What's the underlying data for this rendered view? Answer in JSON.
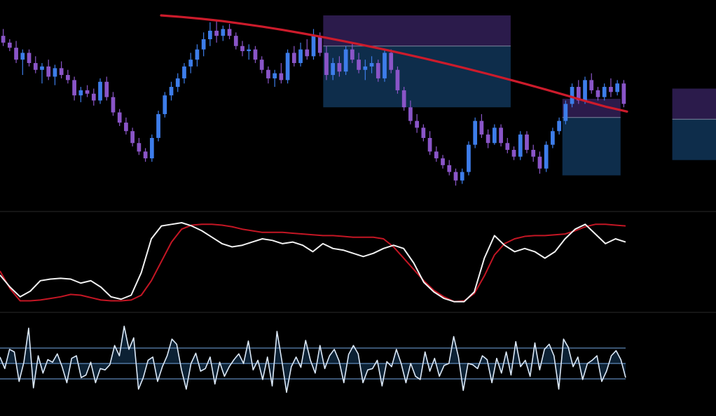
{
  "chart_data": {
    "type": "candlestick",
    "colors": {
      "background": "#000000",
      "up": "#3d7dea",
      "down": "#8a55c8",
      "moving_average": "#cc1b2b",
      "oscillator_fast": "#f2f2f2",
      "oscillator_slow": "#c41624",
      "histogram_line": "#dce9f8",
      "band": "#6f9fd6",
      "zone_top": "#3a2464",
      "zone_bottom": "#12385e",
      "pane_divider": "#2a2a2a"
    },
    "price_pane": {
      "ylim": [
        0,
        100
      ],
      "candles": [
        [
          88,
          92,
          82,
          84
        ],
        [
          84,
          86,
          79,
          81
        ],
        [
          81,
          85,
          72,
          74
        ],
        [
          74,
          80,
          65,
          78
        ],
        [
          78,
          80,
          70,
          72
        ],
        [
          72,
          76,
          66,
          68
        ],
        [
          68,
          72,
          60,
          70
        ],
        [
          70,
          74,
          62,
          64
        ],
        [
          64,
          71,
          59,
          69
        ],
        [
          69,
          73,
          63,
          65
        ],
        [
          65,
          68,
          60,
          62
        ],
        [
          62,
          64,
          50,
          53
        ],
        [
          53,
          58,
          49,
          56
        ],
        [
          56,
          59,
          52,
          54
        ],
        [
          54,
          57,
          47,
          50
        ],
        [
          50,
          63,
          48,
          61
        ],
        [
          61,
          64,
          50,
          52
        ],
        [
          52,
          55,
          41,
          43
        ],
        [
          43,
          45,
          35,
          37
        ],
        [
          37,
          40,
          30,
          32
        ],
        [
          32,
          34,
          23,
          25
        ],
        [
          25,
          28,
          18,
          20
        ],
        [
          20,
          22,
          14,
          16
        ],
        [
          16,
          30,
          14,
          28
        ],
        [
          28,
          44,
          26,
          42
        ],
        [
          42,
          55,
          40,
          53
        ],
        [
          53,
          61,
          50,
          58
        ],
        [
          58,
          66,
          55,
          63
        ],
        [
          63,
          72,
          60,
          70
        ],
        [
          70,
          78,
          66,
          74
        ],
        [
          74,
          83,
          70,
          80
        ],
        [
          80,
          90,
          76,
          86
        ],
        [
          86,
          96,
          82,
          91
        ],
        [
          91,
          97,
          84,
          88
        ],
        [
          88,
          94,
          85,
          92
        ],
        [
          92,
          95,
          86,
          88
        ],
        [
          88,
          90,
          80,
          82
        ],
        [
          82,
          85,
          76,
          79
        ],
        [
          79,
          83,
          74,
          80
        ],
        [
          80,
          82,
          72,
          74
        ],
        [
          74,
          76,
          66,
          68
        ],
        [
          68,
          70,
          60,
          63
        ],
        [
          63,
          68,
          58,
          66
        ],
        [
          66,
          72,
          60,
          62
        ],
        [
          62,
          80,
          60,
          78
        ],
        [
          78,
          82,
          70,
          72
        ],
        [
          72,
          84,
          70,
          80
        ],
        [
          80,
          86,
          74,
          76
        ],
        [
          76,
          92,
          74,
          88
        ],
        [
          88,
          90,
          76,
          78
        ],
        [
          78,
          82,
          62,
          65
        ],
        [
          65,
          75,
          62,
          72
        ],
        [
          72,
          76,
          64,
          67
        ],
        [
          67,
          82,
          65,
          80
        ],
        [
          80,
          84,
          72,
          74
        ],
        [
          74,
          78,
          66,
          68
        ],
        [
          68,
          74,
          62,
          70
        ],
        [
          70,
          76,
          66,
          72
        ],
        [
          72,
          74,
          61,
          63
        ],
        [
          63,
          80,
          61,
          78
        ],
        [
          78,
          80,
          66,
          68
        ],
        [
          68,
          70,
          54,
          56
        ],
        [
          56,
          58,
          44,
          46
        ],
        [
          46,
          50,
          36,
          38
        ],
        [
          38,
          42,
          31,
          34
        ],
        [
          34,
          36,
          26,
          28
        ],
        [
          28,
          32,
          18,
          20
        ],
        [
          20,
          23,
          14,
          16
        ],
        [
          16,
          18,
          10,
          12
        ],
        [
          12,
          15,
          6,
          8
        ],
        [
          8,
          10,
          0,
          3
        ],
        [
          3,
          10,
          1,
          8
        ],
        [
          8,
          26,
          6,
          24
        ],
        [
          24,
          40,
          22,
          38
        ],
        [
          38,
          42,
          28,
          30
        ],
        [
          30,
          33,
          22,
          25
        ],
        [
          25,
          36,
          24,
          34
        ],
        [
          34,
          36,
          23,
          25
        ],
        [
          25,
          28,
          19,
          21
        ],
        [
          21,
          23,
          15,
          17
        ],
        [
          17,
          32,
          15,
          30
        ],
        [
          30,
          32,
          19,
          21
        ],
        [
          21,
          24,
          14,
          17
        ],
        [
          17,
          20,
          7,
          10
        ],
        [
          10,
          26,
          8,
          24
        ],
        [
          24,
          34,
          22,
          32
        ],
        [
          32,
          40,
          30,
          38
        ],
        [
          38,
          50,
          36,
          48
        ],
        [
          48,
          60,
          46,
          58
        ],
        [
          58,
          62,
          48,
          50
        ],
        [
          50,
          64,
          48,
          62
        ],
        [
          62,
          66,
          54,
          56
        ],
        [
          56,
          58,
          50,
          52
        ],
        [
          52,
          60,
          50,
          58
        ],
        [
          58,
          63,
          52,
          55
        ],
        [
          55,
          62,
          53,
          60
        ],
        [
          60,
          62,
          46,
          48
        ]
      ],
      "moving_average": [
        100,
        99.1,
        98,
        96.7,
        95.1,
        93.4,
        91.5,
        89.4,
        87.2,
        84.9,
        82.5,
        80,
        77.4,
        74.7,
        71.9,
        69,
        66,
        62.9,
        59.7,
        56.4,
        53,
        49.5,
        46.2,
        43.5
      ],
      "zones": [
        {
          "start": 50,
          "end": 78,
          "top": 100,
          "mid": 82,
          "bottom": 46
        },
        {
          "start": 87,
          "end": 95,
          "top": 51,
          "mid": 40,
          "bottom": 6
        },
        {
          "start": 104,
          "end": 111,
          "top": 57,
          "mid": 39,
          "bottom": 15
        }
      ]
    },
    "oscillator_pane": {
      "ylim": [
        0,
        100
      ],
      "series": [
        {
          "values": [
            35,
            20,
            8,
            15,
            28,
            30,
            31,
            30,
            25,
            28,
            20,
            8,
            5,
            10,
            38,
            80,
            96,
            98,
            100,
            96,
            90,
            82,
            74,
            70,
            72,
            76,
            80,
            78,
            74,
            76,
            72,
            64,
            74,
            68,
            66,
            62,
            58,
            62,
            68,
            72,
            68,
            50,
            26,
            14,
            6,
            2,
            2,
            14,
            56,
            84,
            72,
            64,
            68,
            64,
            56,
            64,
            80,
            92,
            98,
            86,
            74,
            80,
            76
          ]
        },
        {
          "values": [
            40,
            18,
            3,
            3,
            4,
            6,
            8,
            11,
            10,
            7,
            4,
            3,
            3,
            4,
            10,
            28,
            52,
            76,
            92,
            97,
            98,
            98,
            97,
            95,
            92,
            90,
            88,
            88,
            88,
            87,
            86,
            85,
            84,
            84,
            83,
            82,
            82,
            82,
            80,
            70,
            56,
            42,
            28,
            16,
            8,
            2,
            3,
            12,
            34,
            60,
            74,
            80,
            83,
            84,
            84,
            85,
            86,
            90,
            95,
            98,
            98,
            97,
            96
          ]
        }
      ]
    },
    "histogram_pane": {
      "ylim": [
        -60,
        60
      ],
      "band_levels": [
        24,
        0,
        -24
      ],
      "values": [
        10,
        -8,
        22,
        18,
        -28,
        2,
        55,
        -38,
        12,
        -15,
        6,
        2,
        15,
        -5,
        -30,
        8,
        12,
        -22,
        -18,
        2,
        -30,
        -8,
        -10,
        -2,
        28,
        12,
        58,
        22,
        40,
        -40,
        -22,
        5,
        10,
        -28,
        -5,
        12,
        38,
        30,
        -10,
        -40,
        0,
        16,
        -12,
        -8,
        10,
        -32,
        2,
        -20,
        -5,
        6,
        15,
        0,
        35,
        -10,
        5,
        -25,
        10,
        -35,
        50,
        5,
        -45,
        -5,
        10,
        -6,
        36,
        5,
        -15,
        28,
        -8,
        12,
        22,
        4,
        -30,
        14,
        28,
        15,
        -30,
        -10,
        -8,
        5,
        -35,
        3,
        -5,
        22,
        0,
        -30,
        0,
        -20,
        -25,
        18,
        -12,
        8,
        -20,
        -3,
        0,
        42,
        10,
        -42,
        0,
        -2,
        -8,
        12,
        6,
        -30,
        8,
        -15,
        18,
        -18,
        34,
        -5,
        5,
        -20,
        32,
        -10,
        22,
        30,
        12,
        -40,
        38,
        25,
        -5,
        10,
        -25,
        0,
        5,
        12,
        -28,
        -12,
        12,
        20,
        6,
        -22
      ]
    }
  }
}
